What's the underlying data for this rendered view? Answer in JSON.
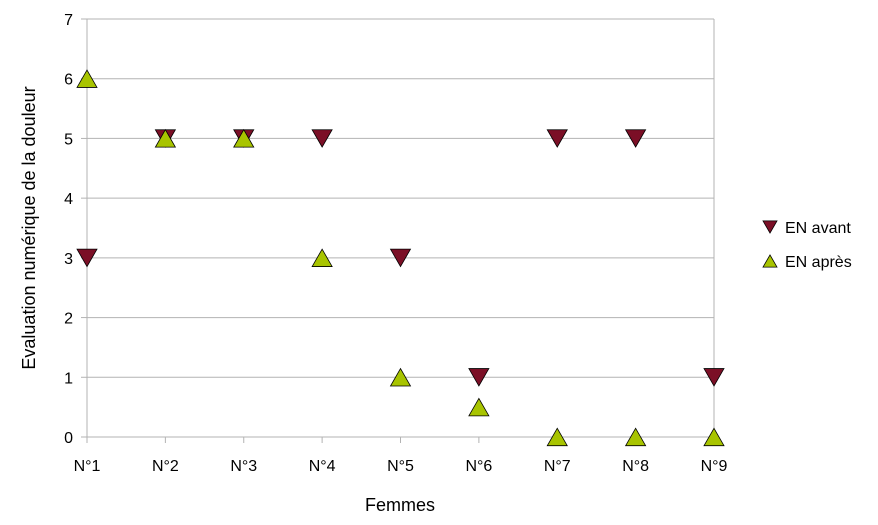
{
  "chart_data": {
    "type": "scatter",
    "categories": [
      "N°1",
      "N°2",
      "N°3",
      "N°4",
      "N°5",
      "N°6",
      "N°7",
      "N°8",
      "N°9"
    ],
    "series": [
      {
        "name": "EN avant",
        "marker": "triangle-down",
        "color": "#7b0f26",
        "values": [
          3,
          5,
          5,
          5,
          3,
          1,
          5,
          5,
          1
        ]
      },
      {
        "name": "EN après",
        "marker": "triangle-up",
        "color": "#a8c400",
        "values": [
          6,
          5,
          5,
          3,
          1,
          0.5,
          0,
          0,
          0
        ]
      }
    ],
    "xlabel": "Femmes",
    "ylabel": "Evaluation numérique de la douleur",
    "ylim": [
      0,
      7
    ],
    "yticks": [
      "0",
      "1",
      "2",
      "3",
      "4",
      "5",
      "6",
      "7"
    ],
    "grid": true,
    "legend_position": "right"
  }
}
